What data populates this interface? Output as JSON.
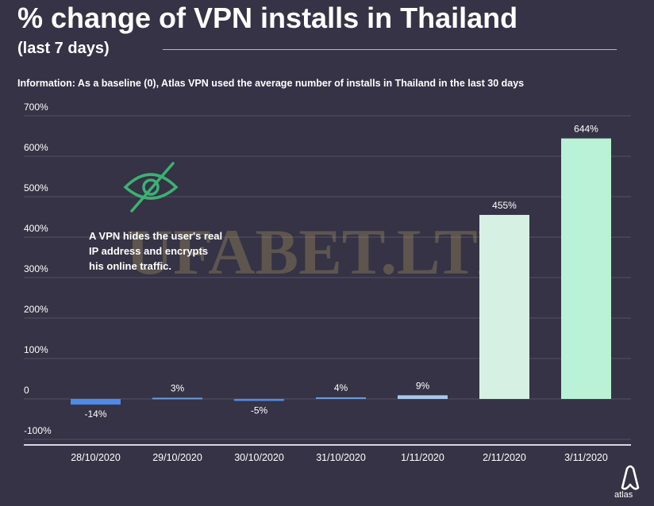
{
  "header": {
    "title": "% change of VPN installs in Thailand",
    "subtitle": "(last 7 days)",
    "info": "Information: As a baseline (0), Atlas VPN used the average number of installs in Thailand in the last 30 days"
  },
  "annotation": {
    "icon": "eye-slash-icon",
    "lines": [
      "A VPN hides the user's real",
      "IP address and encrypts",
      "his online traffic."
    ]
  },
  "watermark": "UFABET.LTD",
  "brand": {
    "name": "atlas",
    "icon": "atlas-logo-icon"
  },
  "colors": {
    "background": "#353345",
    "grid": "#4e4c5e",
    "negative_bar": "#4d8be6",
    "small_bar": "#6b9ad9",
    "mid_bar": "#a9c8ec",
    "large_bar_1": "#d6f1e4",
    "large_bar_2": "#b9f2d6",
    "icon_green": "#3bb273"
  },
  "chart_data": {
    "type": "bar",
    "title": "% change of VPN installs in Thailand",
    "subtitle": "(last 7 days)",
    "categories": [
      "28/10/2020",
      "29/10/2020",
      "30/10/2020",
      "31/10/2020",
      "1/11/2020",
      "2/11/2020",
      "3/11/2020"
    ],
    "values": [
      -14,
      3,
      -5,
      4,
      9,
      455,
      644
    ],
    "data_labels": [
      "-14%",
      "3%",
      "-5%",
      "4%",
      "9%",
      "455%",
      "644%"
    ],
    "y_ticks": [
      -100,
      0,
      100,
      200,
      300,
      400,
      500,
      600,
      700
    ],
    "y_tick_labels": [
      "-100%",
      "0",
      "100%",
      "200%",
      "300%",
      "400%",
      "500%",
      "600%",
      "700%"
    ],
    "ylim": [
      -100,
      700
    ],
    "grid": true,
    "legend": "none"
  }
}
